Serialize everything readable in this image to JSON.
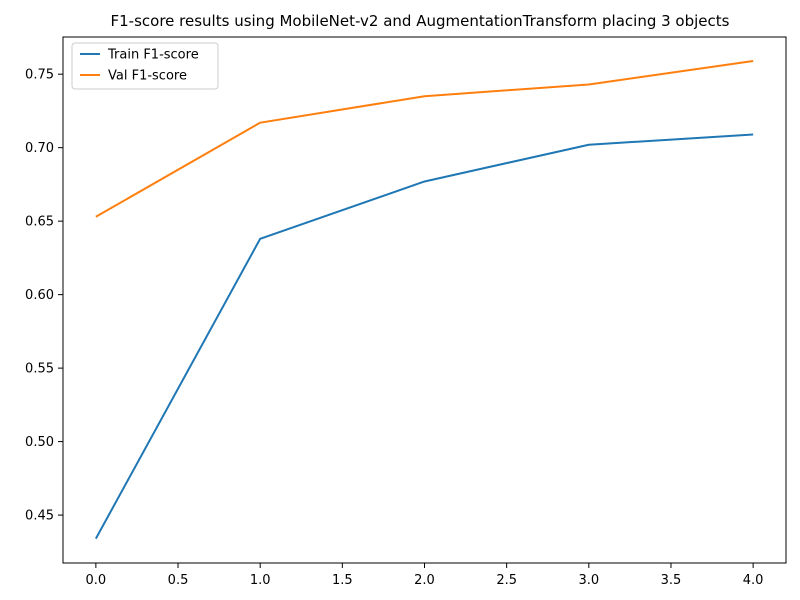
{
  "chart_data": {
    "type": "line",
    "title": "F1-score results using MobileNet-v2 and AugmentationTransform placing 3 objects",
    "xlabel": "",
    "ylabel": "",
    "x": [
      0,
      1,
      2,
      3,
      4
    ],
    "series": [
      {
        "name": "Train F1-score",
        "color": "#1f77b4",
        "values": [
          0.434,
          0.638,
          0.677,
          0.702,
          0.709
        ]
      },
      {
        "name": "Val F1-score",
        "color": "#ff7f0e",
        "values": [
          0.653,
          0.717,
          0.735,
          0.743,
          0.759
        ]
      }
    ],
    "xlim": [
      -0.2,
      4.2
    ],
    "ylim": [
      0.4174,
      0.7753
    ],
    "xticks": [
      0.0,
      0.5,
      1.0,
      1.5,
      2.0,
      2.5,
      3.0,
      3.5,
      4.0
    ],
    "xtick_labels": [
      "0.0",
      "0.5",
      "1.0",
      "1.5",
      "2.0",
      "2.5",
      "3.0",
      "3.5",
      "4.0"
    ],
    "yticks": [
      0.45,
      0.5,
      0.55,
      0.6,
      0.65,
      0.7,
      0.75
    ],
    "ytick_labels": [
      "0.45",
      "0.50",
      "0.55",
      "0.60",
      "0.65",
      "0.70",
      "0.75"
    ],
    "grid": false,
    "legend_position": "top-left"
  }
}
